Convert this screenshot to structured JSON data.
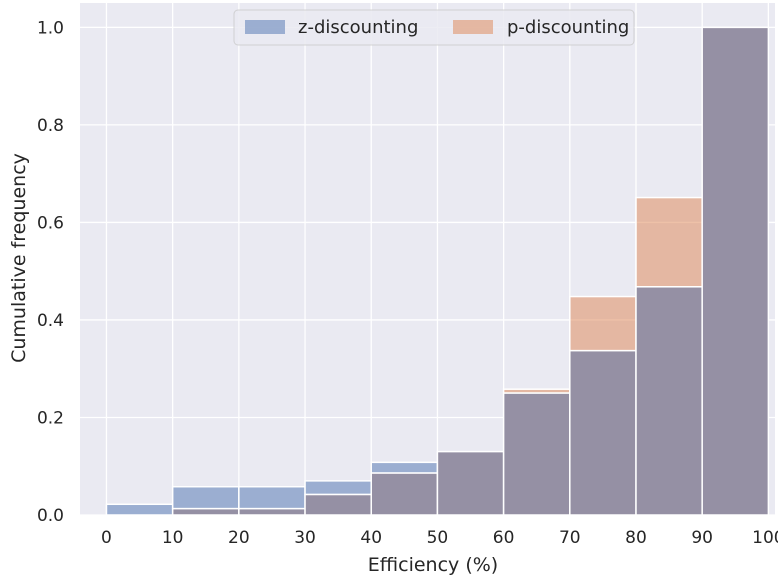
{
  "chart_data": {
    "type": "bar",
    "subtype": "cumulative-histogram-overlay",
    "xlabel": "Efficiency (%)",
    "ylabel": "Cumulative frequency",
    "xlim": [
      -4,
      101
    ],
    "ylim": [
      0,
      1.05
    ],
    "x_ticks": [
      0,
      10,
      20,
      30,
      40,
      50,
      60,
      70,
      80,
      90,
      100
    ],
    "y_ticks": [
      0.0,
      0.2,
      0.4,
      0.6,
      0.8,
      1.0
    ],
    "y_tick_labels": [
      "0.0",
      "0.2",
      "0.4",
      "0.6",
      "0.8",
      "1.0"
    ],
    "bins": [
      [
        0,
        10
      ],
      [
        10,
        20
      ],
      [
        20,
        30
      ],
      [
        30,
        40
      ],
      [
        40,
        50
      ],
      [
        50,
        60
      ],
      [
        60,
        70
      ],
      [
        70,
        80
      ],
      [
        80,
        90
      ],
      [
        90,
        100
      ]
    ],
    "series": [
      {
        "name": "z-discounting",
        "color": "#4c72b0",
        "values": [
          0.022,
          0.058,
          0.058,
          0.07,
          0.108,
          0.13,
          0.25,
          0.337,
          0.468,
          1.0
        ]
      },
      {
        "name": "p-discounting",
        "color": "#dd8452",
        "values": [
          0.0,
          0.013,
          0.013,
          0.042,
          0.086,
          0.13,
          0.258,
          0.448,
          0.651,
          1.0
        ]
      }
    ],
    "overlap_color": "#9590a4",
    "background": "#eaeaf2",
    "grid": true,
    "legend_position": "top-center",
    "legend_columns": 2
  }
}
